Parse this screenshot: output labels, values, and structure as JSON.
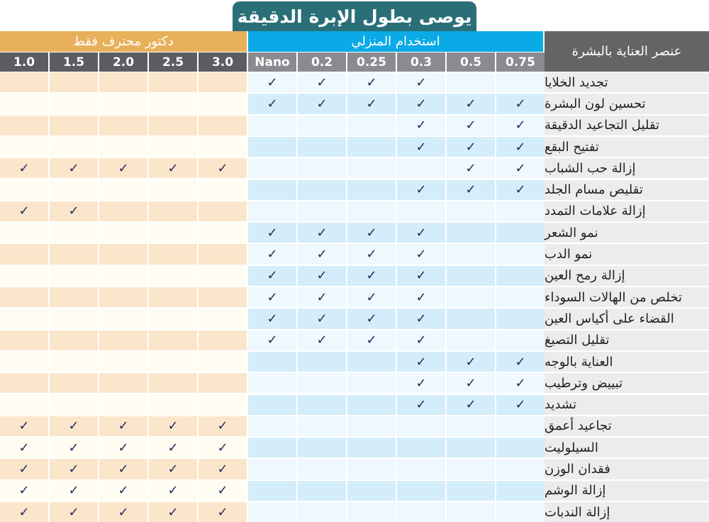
{
  "title": "يوصى بطول الإبرة الدقيقة",
  "sections": {
    "doctor": "دكتور محترف فقط",
    "home": "استخدام المنزلي"
  },
  "label_header": "عنصر العناية بالبشرة",
  "colors": {
    "title_bg": "#2a6f78",
    "doctor_section": "#e8b05a",
    "home_section": "#0aaae6",
    "doctor_row_dark": "#fbe6cc",
    "doctor_row_light": "#fffdf2",
    "home_row_light": "#eef8fe",
    "home_row_dark": "#d3edfa",
    "check": "#1f2a5c"
  },
  "chart_data": {
    "type": "table",
    "title": "يوصى بطول الإبرة الدقيقة",
    "columns": [
      "1.0",
      "1.5",
      "2.0",
      "2.5",
      "3.0",
      "Nano",
      "0.2",
      "0.25",
      "0.3",
      "0.5",
      "0.75"
    ],
    "column_groups": [
      {
        "name": "دكتور محترف فقط",
        "columns": [
          "1.0",
          "1.5",
          "2.0",
          "2.5",
          "3.0"
        ]
      },
      {
        "name": "استخدام المنزلي",
        "columns": [
          "Nano",
          "0.2",
          "0.25",
          "0.3",
          "0.5",
          "0.75"
        ]
      }
    ],
    "row_header": "عنصر العناية بالبشرة",
    "rows": [
      {
        "label": "تجديد الخلايا",
        "checks": [
          0,
          0,
          0,
          0,
          0,
          1,
          1,
          1,
          1,
          0,
          0
        ]
      },
      {
        "label": "تحسين لون البشرة",
        "checks": [
          0,
          0,
          0,
          0,
          0,
          1,
          1,
          1,
          1,
          1,
          1
        ]
      },
      {
        "label": "تقليل التجاعيد الدقيقة",
        "checks": [
          0,
          0,
          0,
          0,
          0,
          0,
          0,
          0,
          1,
          1,
          1
        ]
      },
      {
        "label": "تفتيح البقع",
        "checks": [
          0,
          0,
          0,
          0,
          0,
          0,
          0,
          0,
          1,
          1,
          1
        ]
      },
      {
        "label": "إزالة حب الشباب",
        "checks": [
          1,
          1,
          1,
          1,
          1,
          0,
          0,
          0,
          0,
          1,
          1
        ]
      },
      {
        "label": "تقليص مسام الجلد",
        "checks": [
          0,
          0,
          0,
          0,
          0,
          0,
          0,
          0,
          1,
          1,
          1
        ]
      },
      {
        "label": "إزالة علامات التمدد",
        "checks": [
          1,
          1,
          0,
          0,
          0,
          0,
          0,
          0,
          0,
          0,
          0
        ]
      },
      {
        "label": "نمو الشعر",
        "checks": [
          0,
          0,
          0,
          0,
          0,
          1,
          1,
          1,
          1,
          0,
          0
        ]
      },
      {
        "label": "نمو الدب",
        "checks": [
          0,
          0,
          0,
          0,
          0,
          1,
          1,
          1,
          1,
          0,
          0
        ]
      },
      {
        "label": "إزالة رمح العين",
        "checks": [
          0,
          0,
          0,
          0,
          0,
          1,
          1,
          1,
          1,
          0,
          0
        ]
      },
      {
        "label": "تخلص من الهالات السوداء",
        "checks": [
          0,
          0,
          0,
          0,
          0,
          1,
          1,
          1,
          1,
          0,
          0
        ]
      },
      {
        "label": "القضاء على أكياس العين",
        "checks": [
          0,
          0,
          0,
          0,
          0,
          1,
          1,
          1,
          1,
          0,
          0
        ]
      },
      {
        "label": "تقليل التصبغ",
        "checks": [
          0,
          0,
          0,
          0,
          0,
          1,
          1,
          1,
          1,
          0,
          0
        ]
      },
      {
        "label": "العناية بالوجه",
        "checks": [
          0,
          0,
          0,
          0,
          0,
          0,
          0,
          0,
          1,
          1,
          1
        ]
      },
      {
        "label": "تبييض وترطيب",
        "checks": [
          0,
          0,
          0,
          0,
          0,
          0,
          0,
          0,
          1,
          1,
          1
        ]
      },
      {
        "label": "تشديد",
        "checks": [
          0,
          0,
          0,
          0,
          0,
          0,
          0,
          0,
          1,
          1,
          1
        ]
      },
      {
        "label": "تجاعيد أعمق",
        "checks": [
          1,
          1,
          1,
          1,
          1,
          0,
          0,
          0,
          0,
          0,
          0
        ]
      },
      {
        "label": "السيلوليت",
        "checks": [
          1,
          1,
          1,
          1,
          1,
          0,
          0,
          0,
          0,
          0,
          0
        ]
      },
      {
        "label": "فقدان الوزن",
        "checks": [
          1,
          1,
          1,
          1,
          1,
          0,
          0,
          0,
          0,
          0,
          0
        ]
      },
      {
        "label": "إزالة الوشم",
        "checks": [
          1,
          1,
          1,
          1,
          1,
          0,
          0,
          0,
          0,
          0,
          0
        ]
      },
      {
        "label": "إزالة الندبات",
        "checks": [
          1,
          1,
          1,
          1,
          1,
          0,
          0,
          0,
          0,
          0,
          0
        ]
      }
    ],
    "check_symbol": "✓"
  }
}
